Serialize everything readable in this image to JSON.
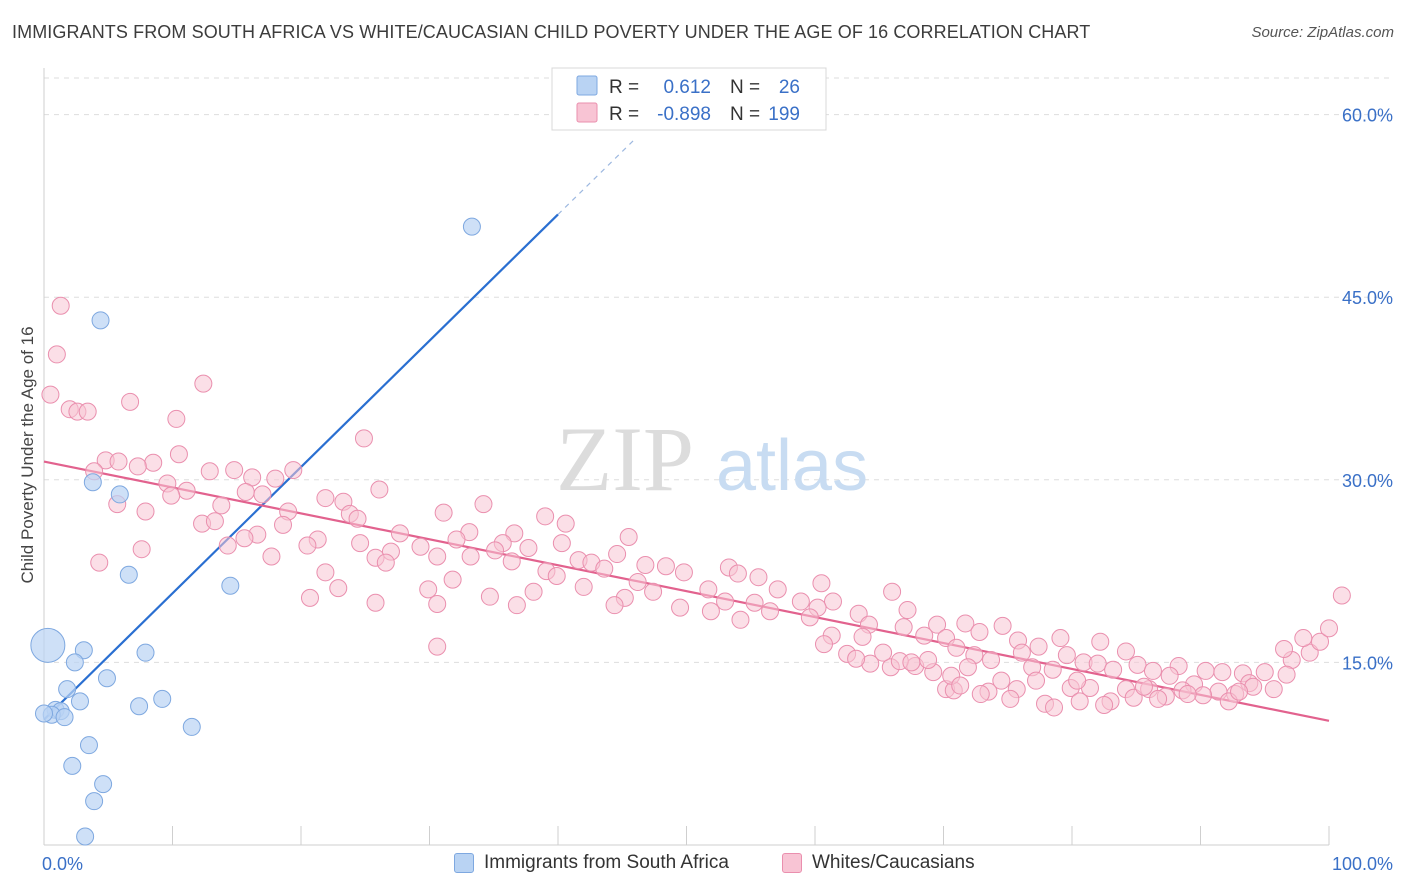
{
  "title": "IMMIGRANTS FROM SOUTH AFRICA VS WHITE/CAUCASIAN CHILD POVERTY UNDER THE AGE OF 16 CORRELATION CHART",
  "source": "Source: ZipAtlas.com",
  "watermark": {
    "zip": "ZIP",
    "atlas": "atlas"
  },
  "colors": {
    "blue_fill": "#b9d3f3",
    "blue_stroke": "#7ea8e0",
    "blue_line": "#2a6fd1",
    "pink_fill": "#f8c4d4",
    "pink_stroke": "#ea8fae",
    "pink_line": "#e2628e",
    "grid": "#dddddd",
    "axis_label": "#3a70c7"
  },
  "stats_box": {
    "rows": [
      {
        "r_label": "R =",
        "r_value": "0.612",
        "n_label": "N =",
        "n_value": "26"
      },
      {
        "r_label": "R =",
        "r_value": "-0.898",
        "n_label": "N =",
        "n_value": "199"
      }
    ]
  },
  "legend": [
    {
      "label": "Immigrants from South Africa"
    },
    {
      "label": "Whites/Caucasians"
    }
  ],
  "chart_data": {
    "type": "scatter",
    "ylabel": "Child Poverty Under the Age of 16",
    "xlabel": "",
    "xlim": [
      0,
      100
    ],
    "ylim": [
      0,
      63.5
    ],
    "x_tick_labels": [
      "0.0%",
      "100.0%"
    ],
    "y_ticks": [
      15,
      30,
      45,
      60
    ],
    "y_tick_labels": [
      "15.0%",
      "30.0%",
      "45.0%",
      "60.0%"
    ],
    "series": [
      {
        "name": "Immigrants from South Africa",
        "color": "blue",
        "points": [
          [
            33.3,
            50.8
          ],
          [
            4.4,
            43.1
          ],
          [
            3.8,
            29.8
          ],
          [
            5.9,
            28.8
          ],
          [
            6.6,
            22.2
          ],
          [
            14.5,
            21.3
          ],
          [
            0.3,
            16.4
          ],
          [
            3.1,
            16.0
          ],
          [
            7.9,
            15.8
          ],
          [
            2.4,
            15.0
          ],
          [
            4.9,
            13.7
          ],
          [
            1.8,
            12.8
          ],
          [
            9.2,
            12.0
          ],
          [
            2.8,
            11.8
          ],
          [
            7.4,
            11.4
          ],
          [
            0.9,
            11.1
          ],
          [
            1.3,
            11.0
          ],
          [
            0.6,
            10.7
          ],
          [
            1.6,
            10.5
          ],
          [
            11.5,
            9.7
          ],
          [
            3.5,
            8.2
          ],
          [
            2.2,
            6.5
          ],
          [
            4.6,
            5.0
          ],
          [
            3.9,
            3.6
          ],
          [
            3.2,
            0.7
          ],
          [
            0.0,
            10.8
          ]
        ],
        "trend": {
          "x": [
            0,
            40
          ],
          "y": [
            10.3,
            51.8
          ],
          "dash_to": [
            46,
            58.0
          ]
        }
      },
      {
        "name": "Whites/Caucasians",
        "color": "pink",
        "points": [
          [
            1.3,
            44.3
          ],
          [
            1.0,
            40.3
          ],
          [
            0.5,
            37.0
          ],
          [
            12.4,
            37.9
          ],
          [
            6.7,
            36.4
          ],
          [
            2.0,
            35.8
          ],
          [
            2.6,
            35.6
          ],
          [
            3.4,
            35.6
          ],
          [
            10.3,
            35.0
          ],
          [
            24.9,
            33.4
          ],
          [
            10.5,
            32.1
          ],
          [
            4.8,
            31.6
          ],
          [
            5.8,
            31.5
          ],
          [
            8.5,
            31.4
          ],
          [
            7.3,
            31.1
          ],
          [
            3.9,
            30.7
          ],
          [
            12.9,
            30.7
          ],
          [
            14.8,
            30.8
          ],
          [
            19.4,
            30.8
          ],
          [
            16.2,
            30.2
          ],
          [
            18.0,
            30.1
          ],
          [
            9.6,
            29.7
          ],
          [
            11.1,
            29.1
          ],
          [
            15.7,
            29.0
          ],
          [
            17.0,
            28.8
          ],
          [
            26.1,
            29.2
          ],
          [
            9.9,
            28.7
          ],
          [
            21.9,
            28.5
          ],
          [
            23.3,
            28.2
          ],
          [
            34.2,
            28.0
          ],
          [
            5.7,
            28.0
          ],
          [
            13.8,
            27.9
          ],
          [
            7.9,
            27.4
          ],
          [
            19.0,
            27.4
          ],
          [
            23.8,
            27.2
          ],
          [
            31.1,
            27.3
          ],
          [
            39.0,
            27.0
          ],
          [
            24.4,
            26.8
          ],
          [
            12.3,
            26.4
          ],
          [
            13.3,
            26.6
          ],
          [
            18.6,
            26.3
          ],
          [
            40.6,
            26.4
          ],
          [
            33.1,
            25.7
          ],
          [
            36.6,
            25.6
          ],
          [
            45.5,
            25.3
          ],
          [
            16.6,
            25.5
          ],
          [
            15.6,
            25.2
          ],
          [
            21.3,
            25.1
          ],
          [
            27.7,
            25.6
          ],
          [
            32.1,
            25.1
          ],
          [
            35.7,
            24.8
          ],
          [
            24.6,
            24.8
          ],
          [
            14.3,
            24.6
          ],
          [
            20.5,
            24.6
          ],
          [
            29.3,
            24.5
          ],
          [
            37.7,
            24.4
          ],
          [
            40.3,
            24.8
          ],
          [
            27.0,
            24.1
          ],
          [
            35.1,
            24.2
          ],
          [
            44.6,
            23.9
          ],
          [
            17.7,
            23.7
          ],
          [
            30.6,
            23.7
          ],
          [
            25.8,
            23.6
          ],
          [
            33.2,
            23.7
          ],
          [
            41.6,
            23.4
          ],
          [
            36.4,
            23.3
          ],
          [
            42.6,
            23.2
          ],
          [
            46.8,
            23.0
          ],
          [
            26.6,
            23.2
          ],
          [
            43.6,
            22.7
          ],
          [
            48.4,
            22.9
          ],
          [
            53.3,
            22.8
          ],
          [
            4.3,
            23.2
          ],
          [
            7.6,
            24.3
          ],
          [
            39.1,
            22.5
          ],
          [
            21.9,
            22.4
          ],
          [
            39.9,
            22.1
          ],
          [
            49.8,
            22.4
          ],
          [
            54.0,
            22.3
          ],
          [
            55.6,
            22.0
          ],
          [
            46.2,
            21.6
          ],
          [
            31.8,
            21.8
          ],
          [
            42.0,
            21.2
          ],
          [
            51.7,
            21.0
          ],
          [
            57.1,
            21.0
          ],
          [
            60.5,
            21.5
          ],
          [
            22.9,
            21.1
          ],
          [
            29.9,
            21.0
          ],
          [
            38.1,
            20.8
          ],
          [
            20.7,
            20.3
          ],
          [
            34.7,
            20.4
          ],
          [
            47.4,
            20.8
          ],
          [
            45.2,
            20.3
          ],
          [
            53.0,
            20.0
          ],
          [
            55.3,
            19.9
          ],
          [
            58.9,
            20.0
          ],
          [
            61.4,
            20.0
          ],
          [
            66.0,
            20.8
          ],
          [
            25.8,
            19.9
          ],
          [
            30.6,
            19.8
          ],
          [
            36.8,
            19.7
          ],
          [
            44.4,
            19.7
          ],
          [
            49.5,
            19.5
          ],
          [
            51.9,
            19.2
          ],
          [
            56.5,
            19.2
          ],
          [
            60.2,
            19.5
          ],
          [
            63.4,
            19.0
          ],
          [
            67.2,
            19.3
          ],
          [
            54.2,
            18.5
          ],
          [
            59.6,
            18.7
          ],
          [
            64.2,
            18.1
          ],
          [
            71.7,
            18.2
          ],
          [
            74.6,
            18.0
          ],
          [
            69.5,
            18.1
          ],
          [
            66.9,
            17.9
          ],
          [
            68.5,
            17.2
          ],
          [
            70.2,
            17.0
          ],
          [
            63.7,
            17.1
          ],
          [
            72.8,
            17.5
          ],
          [
            61.3,
            17.2
          ],
          [
            75.8,
            16.8
          ],
          [
            79.1,
            17.0
          ],
          [
            82.2,
            16.7
          ],
          [
            77.4,
            16.3
          ],
          [
            71.0,
            16.2
          ],
          [
            76.1,
            15.8
          ],
          [
            79.6,
            15.6
          ],
          [
            84.2,
            15.9
          ],
          [
            72.4,
            15.6
          ],
          [
            73.7,
            15.2
          ],
          [
            80.9,
            15.0
          ],
          [
            82.0,
            14.9
          ],
          [
            85.1,
            14.8
          ],
          [
            88.3,
            14.7
          ],
          [
            76.9,
            14.6
          ],
          [
            78.5,
            14.4
          ],
          [
            83.2,
            14.4
          ],
          [
            86.3,
            14.3
          ],
          [
            90.4,
            14.3
          ],
          [
            91.7,
            14.2
          ],
          [
            87.6,
            13.9
          ],
          [
            93.3,
            14.1
          ],
          [
            95.0,
            14.2
          ],
          [
            97.1,
            15.2
          ],
          [
            98.5,
            15.8
          ],
          [
            99.3,
            16.7
          ],
          [
            98.0,
            17.0
          ],
          [
            96.5,
            16.1
          ],
          [
            100.0,
            17.8
          ],
          [
            101.0,
            20.5
          ],
          [
            93.8,
            13.3
          ],
          [
            89.5,
            13.2
          ],
          [
            86.0,
            12.8
          ],
          [
            84.2,
            12.8
          ],
          [
            81.4,
            12.9
          ],
          [
            79.9,
            12.9
          ],
          [
            75.7,
            12.8
          ],
          [
            73.5,
            12.6
          ],
          [
            70.2,
            12.8
          ],
          [
            88.6,
            12.7
          ],
          [
            91.4,
            12.6
          ],
          [
            94.1,
            13.0
          ],
          [
            95.7,
            12.8
          ],
          [
            92.7,
            12.4
          ],
          [
            90.2,
            12.3
          ],
          [
            87.3,
            12.2
          ],
          [
            84.8,
            12.1
          ],
          [
            83.0,
            11.8
          ],
          [
            80.6,
            11.8
          ],
          [
            77.9,
            11.6
          ],
          [
            75.2,
            12.0
          ],
          [
            72.9,
            12.4
          ],
          [
            70.8,
            12.7
          ],
          [
            82.5,
            11.5
          ],
          [
            78.6,
            11.3
          ],
          [
            89.0,
            12.4
          ],
          [
            86.7,
            12.0
          ],
          [
            92.2,
            11.8
          ],
          [
            93.0,
            12.6
          ],
          [
            96.7,
            14.0
          ],
          [
            85.6,
            13.0
          ],
          [
            80.4,
            13.5
          ],
          [
            77.2,
            13.5
          ],
          [
            74.5,
            13.5
          ],
          [
            71.9,
            14.6
          ],
          [
            69.2,
            14.2
          ],
          [
            67.8,
            14.7
          ],
          [
            65.9,
            14.6
          ],
          [
            64.3,
            14.9
          ],
          [
            66.6,
            15.1
          ],
          [
            68.8,
            15.2
          ],
          [
            62.5,
            15.7
          ],
          [
            60.7,
            16.5
          ],
          [
            63.2,
            15.3
          ],
          [
            65.3,
            15.8
          ],
          [
            67.5,
            15.0
          ],
          [
            70.6,
            13.9
          ],
          [
            71.3,
            13.1
          ],
          [
            30.6,
            16.3
          ]
        ],
        "trend": {
          "x": [
            0,
            100
          ],
          "y": [
            31.5,
            10.2
          ]
        }
      }
    ]
  }
}
